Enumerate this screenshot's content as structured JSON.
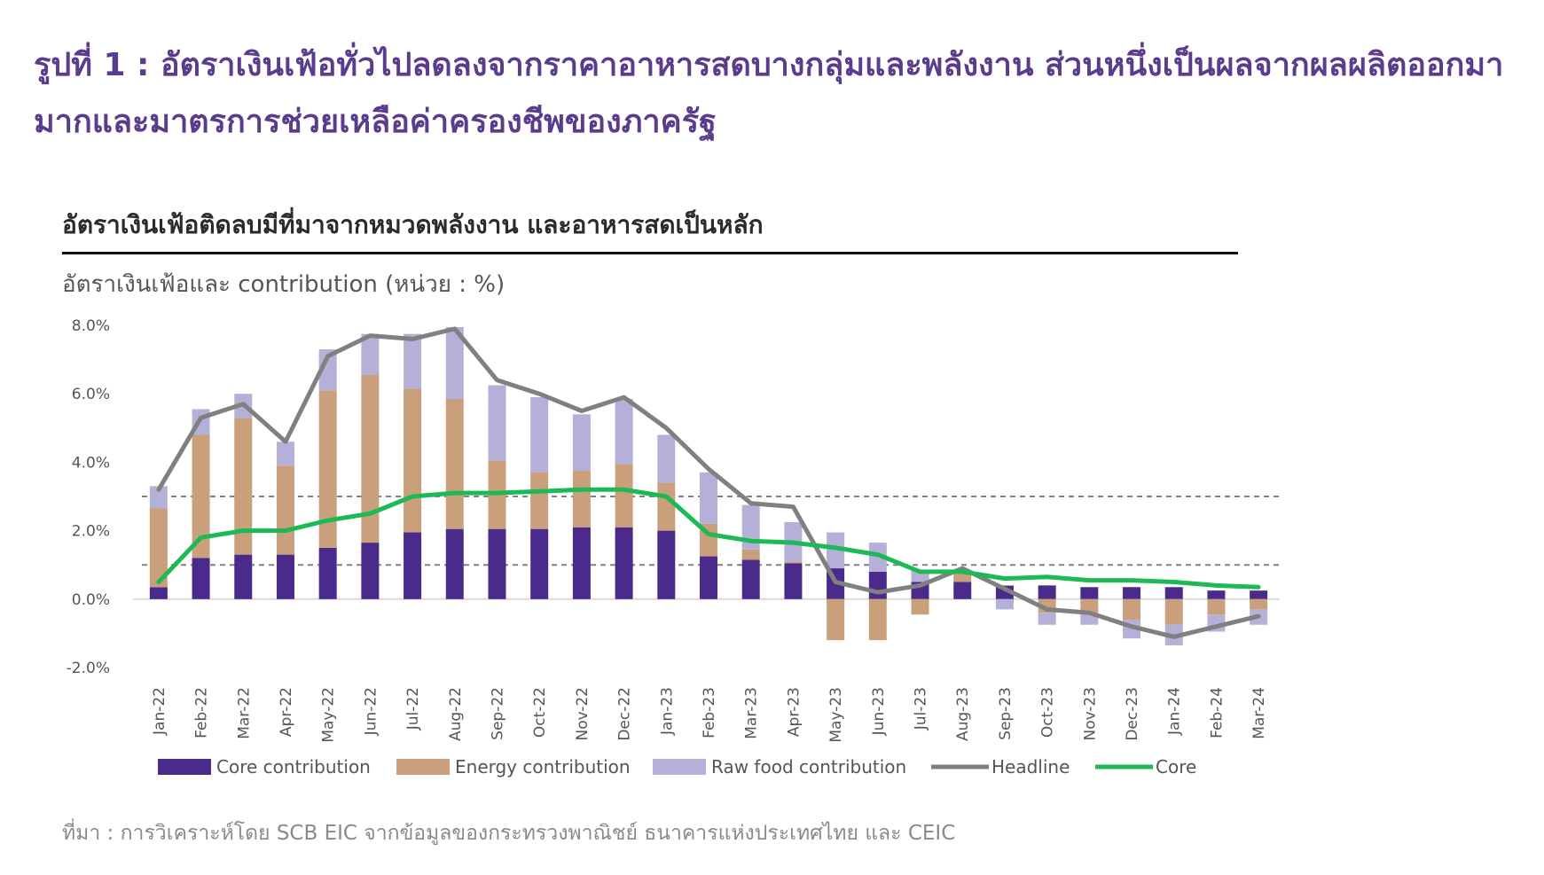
{
  "figure_title": "รูปที่ 1 : อัตราเงินเฟ้อทั่วไปลดลงจากราคาอาหารสดบางกลุ่มและพลังงาน ส่วนหนึ่งเป็นผลจากผลผลิตออกมามากและมาตรการช่วยเหลือค่าครองชีพของภาครัฐ",
  "source": "ที่มา : การวิเคราะห์โดย SCB EIC จากข้อมูลของกระทรวงพาณิชย์ ธนาคารแห่งประเทศไทย และ CEIC",
  "colors": {
    "title": "#5b3b8c",
    "core_contribution": "#4a2a8a",
    "energy_contribution": "#c9a07b",
    "raw_food_contribution": "#b4b0d8",
    "headline": "#808080",
    "core": "#1db954",
    "reference_line": "#808080"
  },
  "chart_data": {
    "type": "bar",
    "title": "อัตราเงินเฟ้อติดลบมีที่มาจากหมวดพลังงาน  และอาหารสดเป็นหลัก",
    "subtitle": "อัตราเงินเฟ้อและ contribution (หน่วย : %)",
    "ylim": [
      -2.0,
      8.0
    ],
    "yticks": [
      "8.0%",
      "6.0%",
      "4.0%",
      "2.0%",
      "0.0%",
      "-2.0%"
    ],
    "ytick_values": [
      8,
      6,
      4,
      2,
      0,
      -2
    ],
    "reference_lines": [
      3.0,
      1.0
    ],
    "categories": [
      "Jan-22",
      "Feb-22",
      "Mar-22",
      "Apr-22",
      "May-22",
      "Jun-22",
      "Jul-22",
      "Aug-22",
      "Sep-22",
      "Oct-22",
      "Nov-22",
      "Dec-22",
      "Jan-23",
      "Feb-23",
      "Mar-23",
      "Apr-23",
      "May-23",
      "Jun-23",
      "Jul-23",
      "Aug-23",
      "Sep-23",
      "Oct-23",
      "Nov-23",
      "Dec-23",
      "Jan-24",
      "Feb-24",
      "Mar-24"
    ],
    "series": [
      {
        "name": "Core contribution",
        "kind": "bar",
        "values": [
          0.35,
          1.2,
          1.3,
          1.3,
          1.5,
          1.65,
          1.95,
          2.05,
          2.05,
          2.05,
          2.1,
          2.1,
          2.0,
          1.25,
          1.15,
          1.05,
          0.9,
          0.8,
          0.5,
          0.5,
          0.4,
          0.4,
          0.35,
          0.35,
          0.35,
          0.25,
          0.25
        ]
      },
      {
        "name": "Energy contribution",
        "kind": "bar",
        "values": [
          2.3,
          3.6,
          4.0,
          2.6,
          4.6,
          4.9,
          4.2,
          3.8,
          2.0,
          1.65,
          1.65,
          1.85,
          1.4,
          0.95,
          0.3,
          0.05,
          -1.2,
          -1.2,
          -0.45,
          0.3,
          0.0,
          -0.4,
          -0.4,
          -0.6,
          -0.75,
          -0.45,
          -0.3
        ]
      },
      {
        "name": "Raw food contribution",
        "kind": "bar",
        "values": [
          0.65,
          0.75,
          0.7,
          0.7,
          1.2,
          1.2,
          1.6,
          2.1,
          2.2,
          2.2,
          1.65,
          1.9,
          1.4,
          1.5,
          1.3,
          1.15,
          1.05,
          0.85,
          0.35,
          0.05,
          -0.3,
          -0.35,
          -0.35,
          -0.55,
          -0.6,
          -0.5,
          -0.45
        ]
      },
      {
        "name": "Headline",
        "kind": "line",
        "values": [
          3.2,
          5.3,
          5.7,
          4.6,
          7.1,
          7.7,
          7.6,
          7.9,
          6.4,
          6.0,
          5.5,
          5.9,
          5.0,
          3.8,
          2.8,
          2.7,
          0.5,
          0.2,
          0.4,
          0.9,
          0.3,
          -0.3,
          -0.4,
          -0.8,
          -1.1,
          -0.8,
          -0.5
        ]
      },
      {
        "name": "Core",
        "kind": "line",
        "values": [
          0.5,
          1.8,
          2.0,
          2.0,
          2.3,
          2.5,
          3.0,
          3.1,
          3.1,
          3.15,
          3.2,
          3.2,
          3.0,
          1.9,
          1.7,
          1.65,
          1.5,
          1.3,
          0.8,
          0.8,
          0.6,
          0.65,
          0.55,
          0.55,
          0.5,
          0.4,
          0.35
        ]
      }
    ]
  }
}
